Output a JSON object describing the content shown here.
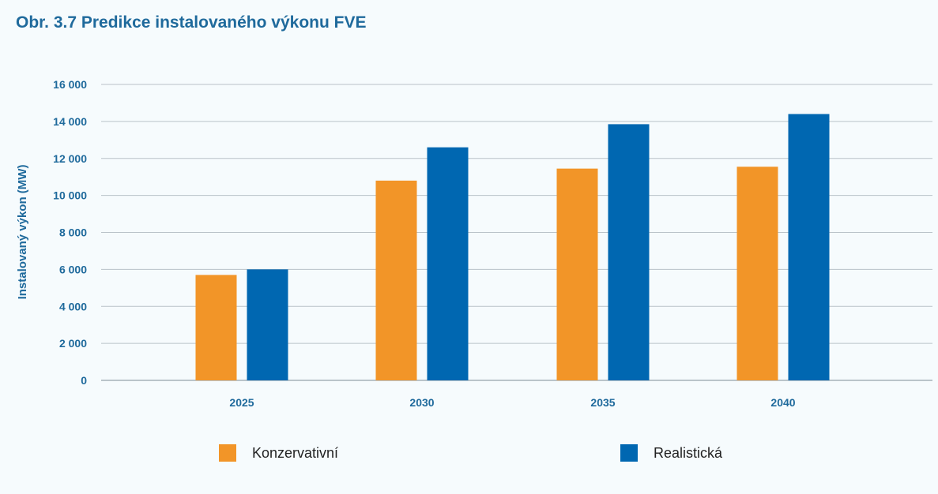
{
  "chart_data": {
    "type": "bar",
    "title": "Obr. 3.7 Predikce instalovaného výkonu FVE",
    "xlabel": "",
    "ylabel": "Instalovaný výkon (MW)",
    "categories": [
      "2025",
      "2030",
      "2035",
      "2040"
    ],
    "series": [
      {
        "name": "Konzervativní",
        "color": "#f29528",
        "values": [
          5700,
          10800,
          11450,
          11550
        ]
      },
      {
        "name": "Realistická",
        "color": "#0067b1",
        "values": [
          6000,
          12600,
          13850,
          14400
        ]
      }
    ],
    "ylim": [
      0,
      16000
    ],
    "yticks": [
      {
        "value": 0,
        "label": "0"
      },
      {
        "value": 2000,
        "label": "2 000"
      },
      {
        "value": 4000,
        "label": "4 000"
      },
      {
        "value": 6000,
        "label": "6 000"
      },
      {
        "value": 8000,
        "label": "8 000"
      },
      {
        "value": 10000,
        "label": "10 000"
      },
      {
        "value": 12000,
        "label": "12 000"
      },
      {
        "value": 14000,
        "label": "14 000"
      },
      {
        "value": 16000,
        "label": "16 000"
      }
    ],
    "grid": true,
    "legend": "bottom"
  }
}
